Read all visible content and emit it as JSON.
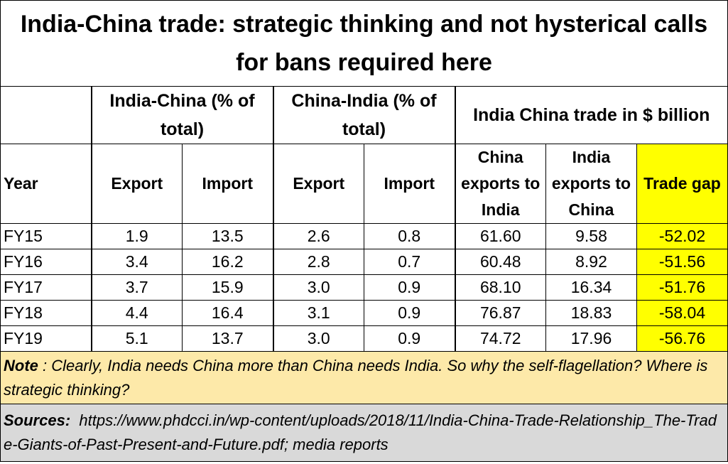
{
  "title": "India-China trade:  strategic thinking and not hysterical calls for bans required here",
  "group_headers": [
    "India-China (% of total)",
    "China-India (% of total)",
    "India China trade in $ billion"
  ],
  "column_headers": [
    "Year",
    "Export",
    "Import",
    "Export",
    "Import",
    "China exports to India",
    "India exports to China",
    "Trade gap"
  ],
  "rows": [
    [
      "FY15",
      "1.9",
      "13.5",
      "2.6",
      "0.8",
      "61.60",
      "9.58",
      "-52.02"
    ],
    [
      "FY16",
      "3.4",
      "16.2",
      "2.8",
      "0.7",
      "60.48",
      "8.92",
      "-51.56"
    ],
    [
      "FY17",
      "3.7",
      "15.9",
      "3.0",
      "0.9",
      "68.10",
      "16.34",
      "-51.76"
    ],
    [
      "FY18",
      "4.4",
      "16.4",
      "3.1",
      "0.9",
      "76.87",
      "18.83",
      "-58.04"
    ],
    [
      "FY19",
      "5.1",
      "13.7",
      "3.0",
      "0.9",
      "74.72",
      "17.96",
      "-56.76"
    ]
  ],
  "note": {
    "label": "Note",
    "text": " : Clearly, India needs China more than China needs India. So why the self-flagellation? Where is strategic thinking?"
  },
  "sources": {
    "label": "Sources:",
    "text": "  https://www.phdcci.in/wp-content/uploads/2018/11/India-China-Trade-Relationship_The-Trade-Giants-of-Past-Present-and-Future.pdf; media reports"
  }
}
